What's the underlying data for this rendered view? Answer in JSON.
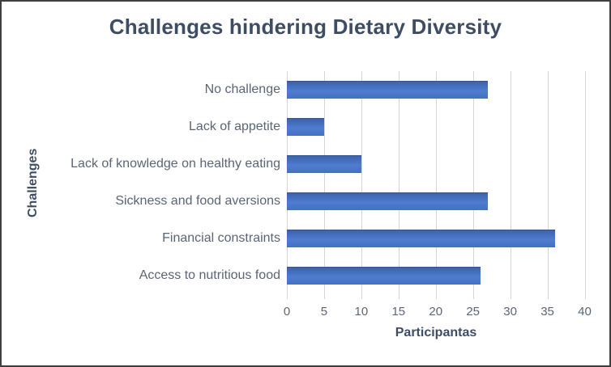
{
  "chart_data": {
    "type": "bar",
    "orientation": "horizontal",
    "title": "Challenges hindering Dietary Diversity",
    "categories": [
      "No challenge",
      "Lack of appetite",
      "Lack of knowledge on healthy eating",
      "Sickness and food aversions",
      "Financial constraints",
      "Access to nutritious food"
    ],
    "values": [
      27,
      5,
      10,
      27,
      36,
      26
    ],
    "xlabel": "Participantas",
    "ylabel": "Challenges",
    "xlim": [
      0,
      40
    ],
    "xticks": [
      "0",
      "5",
      "10",
      "15",
      "20",
      "25",
      "30",
      "35",
      "40"
    ],
    "grid": "vertical",
    "legend": "none",
    "colors": {
      "bar": "#4472C4",
      "bar_gradient_top": "#3d63ab",
      "bar_gradient_mid": "#4e7ccf",
      "bar_gradient_bottom": "#4471c2",
      "bar_border_top": "#33548f",
      "title_text": "#3e4d63",
      "axis_title_text": "#3e4d63",
      "tick_text": "#5a6575",
      "category_text": "#5a6575",
      "gridline": "#d6d6d6",
      "frame_border": "#3f3f3f",
      "background": "#ffffff"
    }
  }
}
